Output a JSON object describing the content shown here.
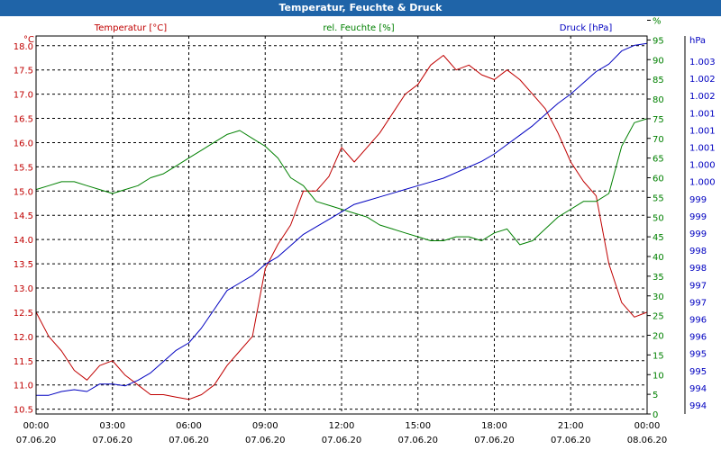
{
  "window_title": "Temperatur, Feuchte & Druck",
  "chart_data": {
    "type": "line",
    "title": "Temperatur, Feuchte & Druck",
    "grid": true,
    "x": {
      "tick_labels": [
        [
          "00:00",
          "07.06.20"
        ],
        [
          "03:00",
          "07.06.20"
        ],
        [
          "06:00",
          "07.06.20"
        ],
        [
          "09:00",
          "07.06.20"
        ],
        [
          "12:00",
          "07.06.20"
        ],
        [
          "15:00",
          "07.06.20"
        ],
        [
          "18:00",
          "07.06.20"
        ],
        [
          "21:00",
          "07.06.20"
        ],
        [
          "00:00",
          "08.06.20"
        ]
      ],
      "range_hours": [
        0,
        24
      ]
    },
    "axes": {
      "temperature": {
        "label": "Temperatur [°C]",
        "unit": "°C",
        "color": "#c00000",
        "range": [
          10.4,
          18.2
        ],
        "ticks": [
          "10.5",
          "11.0",
          "11.5",
          "12.0",
          "12.5",
          "13.0",
          "13.5",
          "14.0",
          "14.5",
          "15.0",
          "15.5",
          "16.0",
          "16.5",
          "17.0",
          "17.5",
          "18.0"
        ]
      },
      "humidity": {
        "label": "rel. Feuchte [%]",
        "unit": "%",
        "color": "#008000",
        "range": [
          0,
          96
        ],
        "ticks": [
          "0",
          "5",
          "10",
          "15",
          "20",
          "25",
          "30",
          "35",
          "40",
          "45",
          "50",
          "55",
          "60",
          "65",
          "70",
          "75",
          "80",
          "85",
          "90",
          "95",
          "%"
        ]
      },
      "pressure": {
        "label": "Druck [hPa]",
        "unit": "hPa",
        "color": "#0000c0",
        "range": [
          993.5,
          1003.6
        ],
        "ticks": [
          "994",
          "994",
          "995",
          "995",
          "996",
          "996",
          "997",
          "997",
          "998",
          "998",
          "999",
          "999",
          "999",
          "1.000",
          "1.000",
          "1.001",
          "1.001",
          "1.001",
          "1.002",
          "1.002",
          "1.003"
        ]
      }
    },
    "series": [
      {
        "name": "Temperatur [°C]",
        "axis": "temperature",
        "color": "#c00000",
        "x": [
          0,
          0.5,
          1,
          1.5,
          2,
          2.5,
          3,
          3.5,
          4,
          4.5,
          5,
          5.5,
          6,
          6.5,
          7,
          7.5,
          8,
          8.5,
          9,
          9.5,
          10,
          10.5,
          11,
          11.5,
          12,
          12.5,
          13,
          13.5,
          14,
          14.5,
          15,
          15.5,
          16,
          16.5,
          17,
          17.5,
          18,
          18.5,
          19,
          19.5,
          20,
          20.5,
          21,
          21.5,
          22,
          22.5,
          23,
          23.5,
          24
        ],
        "values": [
          12.5,
          12.0,
          11.7,
          11.3,
          11.1,
          11.4,
          11.5,
          11.2,
          11.0,
          10.8,
          10.8,
          10.75,
          10.7,
          10.8,
          11.0,
          11.4,
          11.7,
          12.0,
          13.4,
          13.9,
          14.3,
          15.0,
          15.0,
          15.3,
          15.9,
          15.6,
          15.9,
          16.2,
          16.6,
          17.0,
          17.2,
          17.6,
          17.8,
          17.5,
          17.6,
          17.4,
          17.3,
          17.5,
          17.3,
          17.0,
          16.7,
          16.2,
          15.6,
          15.2,
          14.9,
          13.5,
          12.7,
          12.4,
          12.5
        ]
      },
      {
        "name": "rel. Feuchte [%]",
        "axis": "humidity",
        "color": "#008000",
        "x": [
          0,
          0.5,
          1,
          1.5,
          2,
          2.5,
          3,
          3.5,
          4,
          4.5,
          5,
          5.5,
          6,
          6.5,
          7,
          7.5,
          8,
          8.5,
          9,
          9.5,
          10,
          10.5,
          11,
          11.5,
          12,
          12.5,
          13,
          13.5,
          14,
          14.5,
          15,
          15.5,
          16,
          16.5,
          17,
          17.5,
          18,
          18.5,
          19,
          19.5,
          20,
          20.5,
          21,
          21.5,
          22,
          22.5,
          23,
          23.5,
          24
        ],
        "values": [
          57,
          58,
          59,
          59,
          58,
          57,
          56,
          57,
          58,
          60,
          61,
          63,
          65,
          67,
          69,
          71,
          72,
          70,
          68,
          65,
          60,
          58,
          54,
          53,
          52,
          51,
          50,
          48,
          47,
          46,
          45,
          44,
          44,
          45,
          45,
          44,
          46,
          47,
          43,
          44,
          47,
          50,
          52,
          54,
          54,
          56,
          68,
          74,
          75
        ]
      },
      {
        "name": "Druck [hPa]",
        "axis": "pressure",
        "color": "#0000c0",
        "x": [
          0,
          0.5,
          1,
          1.5,
          2,
          2.5,
          3,
          3.5,
          4,
          4.5,
          5,
          5.5,
          6,
          6.5,
          7,
          7.5,
          8,
          8.5,
          9,
          9.5,
          10,
          10.5,
          11,
          11.5,
          12,
          12.5,
          13,
          13.5,
          14,
          14.5,
          15,
          15.5,
          16,
          16.5,
          17,
          17.5,
          18,
          18.5,
          19,
          19.5,
          20,
          20.5,
          21,
          21.5,
          22,
          22.5,
          23,
          23.5,
          24
        ],
        "values": [
          994.0,
          994.0,
          994.1,
          994.15,
          994.1,
          994.3,
          994.3,
          994.25,
          994.4,
          994.6,
          994.9,
          995.2,
          995.4,
          995.8,
          996.3,
          996.8,
          997.0,
          997.2,
          997.5,
          997.7,
          998.0,
          998.3,
          998.5,
          998.7,
          998.9,
          999.1,
          999.2,
          999.3,
          999.4,
          999.5,
          999.6,
          999.7,
          999.8,
          999.95,
          1000.1,
          1000.25,
          1000.45,
          1000.7,
          1000.95,
          1001.2,
          1001.5,
          1001.8,
          1002.05,
          1002.35,
          1002.65,
          1002.85,
          1003.2,
          1003.35,
          1003.4
        ]
      }
    ]
  }
}
